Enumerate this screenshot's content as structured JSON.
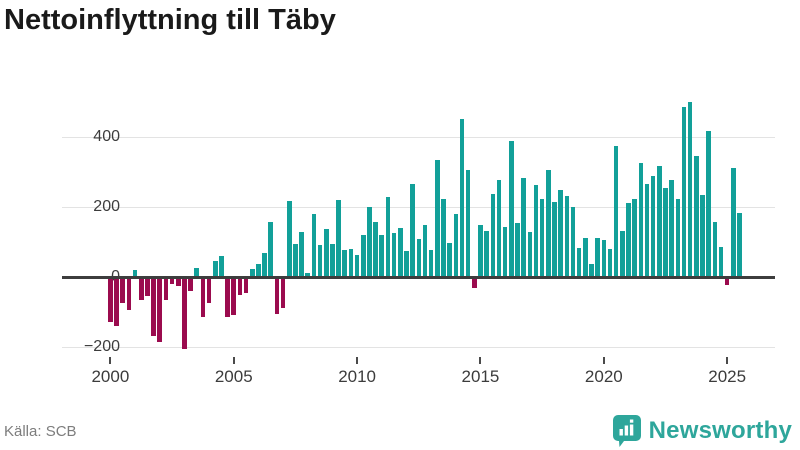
{
  "title": "Nettoinflyttning till Täby",
  "source": "Källa: SCB",
  "branding": {
    "name": "Newsworthy",
    "icon": "newsworthy-bubble-barchart-icon",
    "color": "#2ea69b"
  },
  "colors": {
    "positive_bar": "#12a099",
    "negative_bar": "#9b0b4e",
    "zero_line": "#3d3d3d",
    "gridline": "#e3e3e3",
    "axis_text": "#3c3c3c"
  },
  "chart_data": {
    "type": "bar",
    "title": "Nettoinflyttning till Täby",
    "xlabel": "",
    "ylabel": "",
    "frequency": "quarterly",
    "start_period": "2000Q1",
    "end_period": "2025Q3",
    "x_tick_labels": [
      "2000",
      "2005",
      "2010",
      "2015",
      "2020",
      "2025"
    ],
    "y_tick_labels": [
      "−200",
      "0",
      "200",
      "400"
    ],
    "y_ticks": [
      -200,
      0,
      200,
      400
    ],
    "ylim": [
      -265,
      532
    ],
    "grid": "horizontal",
    "legend": "none",
    "series": [
      {
        "name": "Nettoinflyttning",
        "values": [
          -125,
          -135,
          -70,
          -90,
          20,
          -60,
          -50,
          -165,
          -180,
          -60,
          -15,
          -20,
          -200,
          -35,
          25,
          -110,
          -70,
          45,
          60,
          -110,
          -105,
          -46,
          -40,
          23,
          38,
          67,
          158,
          -100,
          -84,
          217,
          93,
          127,
          10,
          179,
          90,
          138,
          93,
          218,
          78,
          79,
          64,
          119,
          198,
          158,
          119,
          229,
          124,
          140,
          74,
          265,
          108,
          148,
          78,
          332,
          221,
          96,
          180,
          450,
          305,
          -27,
          148,
          131,
          236,
          275,
          142,
          387,
          154,
          281,
          129,
          261,
          221,
          304,
          214,
          249,
          230,
          198,
          82,
          110,
          38,
          111,
          105,
          81,
          372,
          130,
          211,
          221,
          324,
          265,
          287,
          315,
          252,
          277,
          223,
          485,
          497,
          344,
          233,
          417,
          157,
          86,
          -18,
          311,
          182
        ]
      }
    ]
  }
}
